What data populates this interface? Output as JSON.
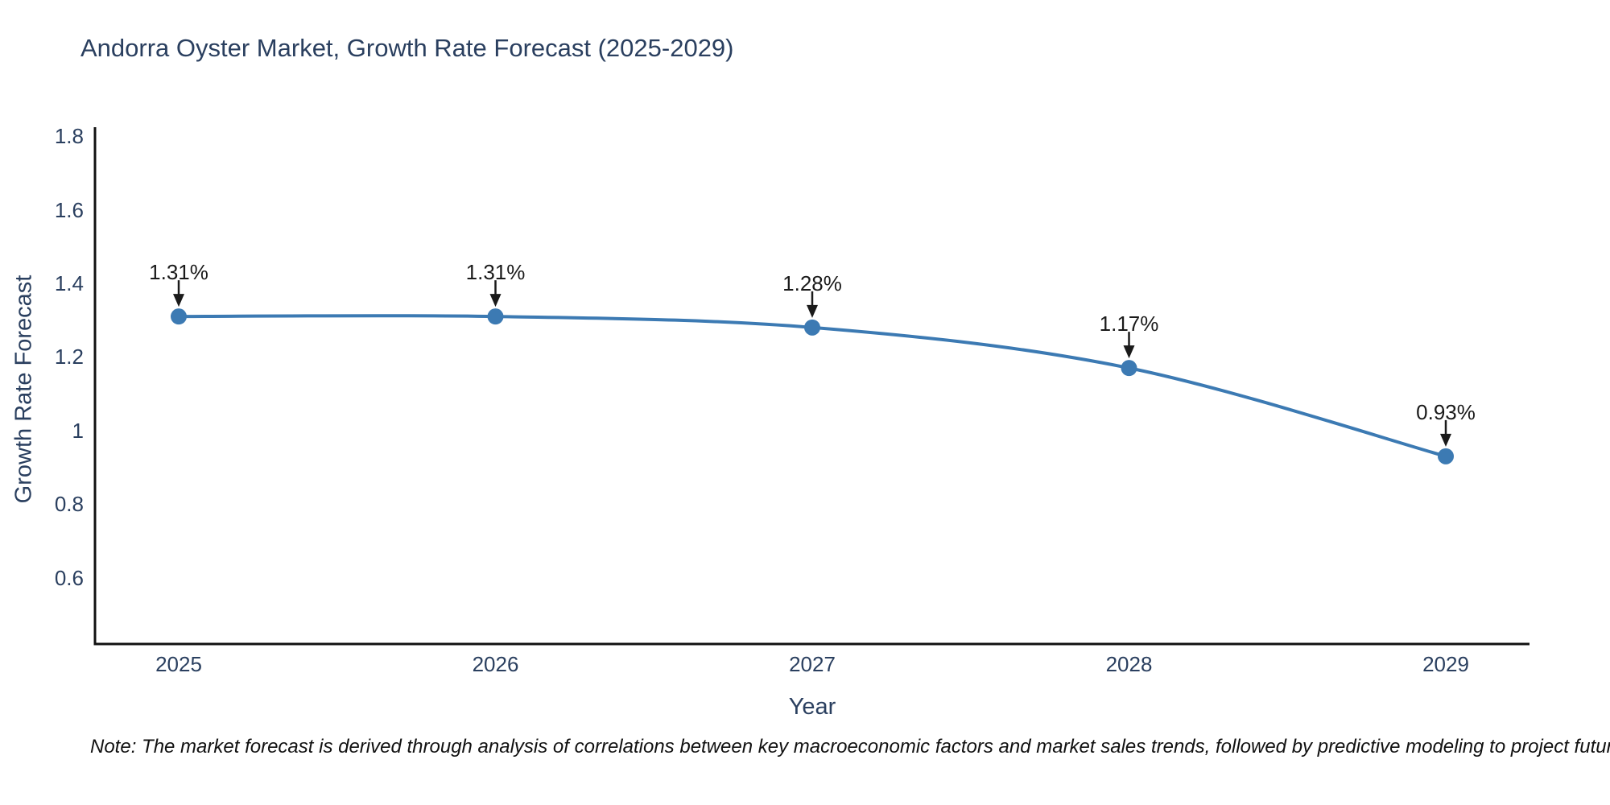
{
  "title": "Andorra Oyster Market, Growth Rate Forecast (2025-2029)",
  "note": "Note: The market forecast is derived through analysis of correlations between key macroeconomic factors and market sales trends, followed by predictive modeling to project future sales",
  "chart_data": {
    "type": "line",
    "title": "Andorra Oyster Market, Growth Rate Forecast (2025-2029)",
    "xlabel": "Year",
    "ylabel": "Growth Rate Forecast",
    "categories": [
      "2025",
      "2026",
      "2027",
      "2028",
      "2029"
    ],
    "series": [
      {
        "name": "Growth Rate Forecast",
        "values": [
          1.31,
          1.31,
          1.28,
          1.17,
          0.93
        ]
      }
    ],
    "annotations": [
      "1.31%",
      "1.31%",
      "1.28%",
      "1.17%",
      "0.93%"
    ],
    "y_tick_values": [
      1.8,
      1.6,
      1.4,
      1.2,
      1,
      0.8,
      0.6
    ],
    "y_tick_labels": [
      "1.8",
      "1.6",
      "1.4",
      "1.2",
      "1",
      "0.8",
      "0.6"
    ],
    "ylim": [
      0.42,
      1.82
    ],
    "line_shape": "spline",
    "grid": false,
    "legend_position": "none",
    "colors": {
      "line": "#3c7ab3",
      "marker": "#3c7ab3",
      "axis": "#111111",
      "tick_text": "#2a3f5f",
      "annotation_text": "#1a1a1a",
      "background": "#ffffff"
    }
  }
}
